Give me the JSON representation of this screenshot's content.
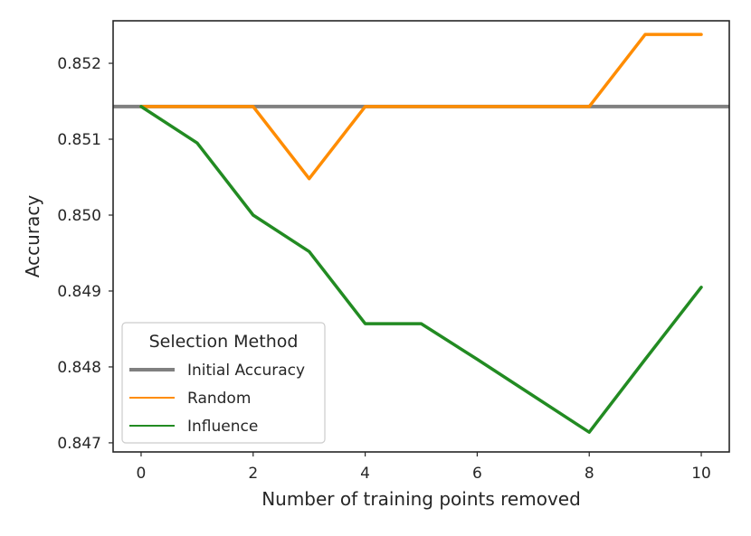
{
  "chart_data": {
    "type": "line",
    "xlabel": "Number of training points removed",
    "ylabel": "Accuracy",
    "xlim": [
      -0.5,
      10.5
    ],
    "ylim": [
      0.84688,
      0.85256
    ],
    "x_ticks": [
      0,
      2,
      4,
      6,
      8,
      10
    ],
    "x_tick_labels": [
      "0",
      "2",
      "4",
      "6",
      "8",
      "10"
    ],
    "y_ticks": [
      0.847,
      0.848,
      0.849,
      0.85,
      0.851,
      0.852
    ],
    "y_tick_labels": [
      "0.847",
      "0.848",
      "0.849",
      "0.850",
      "0.851",
      "0.852"
    ],
    "grid": false,
    "legend": {
      "title": "Selection Method",
      "placement": "lower-left"
    },
    "series": [
      {
        "name": "Initial Accuracy",
        "kind": "hline",
        "color": "#808080",
        "y": 0.85143
      },
      {
        "name": "Random",
        "color": "#ff8c00",
        "x": [
          0,
          1,
          2,
          3,
          4,
          5,
          6,
          7,
          8,
          9,
          10
        ],
        "values": [
          0.85143,
          0.85143,
          0.85143,
          0.85048,
          0.85143,
          0.85143,
          0.85143,
          0.85143,
          0.85143,
          0.85238,
          0.85238
        ]
      },
      {
        "name": "Influence",
        "color": "#228b22",
        "x": [
          0,
          1,
          2,
          3,
          4,
          5,
          6,
          7,
          8,
          9,
          10
        ],
        "values": [
          0.85143,
          0.85095,
          0.85,
          0.84952,
          0.84857,
          0.84857,
          0.8481,
          0.84762,
          0.84714,
          0.8481,
          0.84905
        ]
      }
    ]
  }
}
